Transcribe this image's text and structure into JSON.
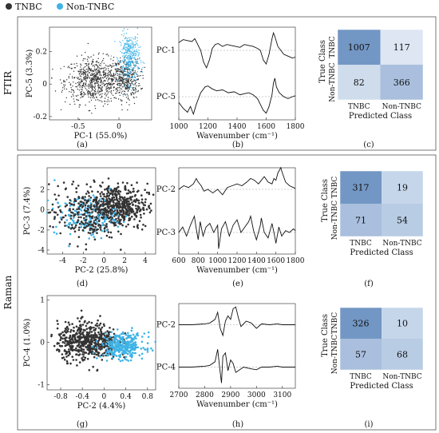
{
  "legend": {
    "items": [
      {
        "label": "TNBC",
        "color": "#333333"
      },
      {
        "label": "Non-TNBC",
        "color": "#3fb3e6"
      }
    ],
    "position": "top-left"
  },
  "sections": [
    {
      "label": "FTIR"
    },
    {
      "label": "Raman"
    }
  ],
  "panel_letters": [
    "(a)",
    "(b)",
    "(c)",
    "(d)",
    "(e)",
    "(f)",
    "(g)",
    "(h)",
    "(i)"
  ],
  "chart_data": [
    {
      "id": "a",
      "type": "scatter",
      "xlabel": "PC-1 (55.0%)",
      "ylabel": "PC-5 (3.3%)",
      "xlim": [
        -0.85,
        0.4
      ],
      "ylim": [
        -0.22,
        0.35
      ],
      "xticks": [
        -0.5,
        0
      ],
      "xticklabels": [
        "-0.5",
        "0"
      ],
      "yticks": [
        -0.2,
        0,
        0.2
      ],
      "yticklabels": [
        "-0.2",
        "0",
        "0.2"
      ],
      "series": [
        {
          "name": "TNBC",
          "color": "#333333",
          "clusters": [
            {
              "cx": -0.3,
              "cy": 0.02,
              "sx": 0.18,
              "sy": 0.07,
              "n": 700
            },
            {
              "cx": 0.08,
              "cy": 0.03,
              "sx": 0.09,
              "sy": 0.06,
              "n": 350
            }
          ]
        },
        {
          "name": "Non-TNBC",
          "color": "#3fb3e6",
          "clusters": [
            {
              "cx": 0.13,
              "cy": 0.16,
              "sx": 0.06,
              "sy": 0.08,
              "n": 380
            }
          ]
        }
      ]
    },
    {
      "id": "b",
      "type": "line",
      "xlabel": "Wavenumber (cm⁻¹)",
      "xlim": [
        1000,
        1800
      ],
      "xticks": [
        1000,
        1200,
        1400,
        1600,
        1800
      ],
      "xticklabels": [
        "1000",
        "1200",
        "1400",
        "1600",
        "1800"
      ],
      "series": [
        {
          "name": "PC-1",
          "x": [
            1000,
            1030,
            1060,
            1090,
            1110,
            1130,
            1150,
            1170,
            1190,
            1210,
            1230,
            1250,
            1270,
            1300,
            1330,
            1360,
            1390,
            1420,
            1450,
            1480,
            1510,
            1540,
            1560,
            1580,
            1600,
            1620,
            1640,
            1650,
            1660,
            1680,
            1700,
            1720,
            1750,
            1780,
            1800
          ],
          "y": [
            0.4,
            0.55,
            0.5,
            0.45,
            0.6,
            0.3,
            0.0,
            -0.6,
            -0.9,
            -0.5,
            0.1,
            0.3,
            0.35,
            0.2,
            0.3,
            0.25,
            0.2,
            0.15,
            0.3,
            0.25,
            0.2,
            0.1,
            0.0,
            -0.5,
            -0.7,
            -0.2,
            0.6,
            0.9,
            0.7,
            0.2,
            0.0,
            -0.2,
            -0.3,
            -0.4,
            -0.35
          ]
        },
        {
          "name": "PC-5",
          "x": [
            1000,
            1030,
            1060,
            1080,
            1100,
            1120,
            1150,
            1180,
            1200,
            1230,
            1260,
            1300,
            1340,
            1380,
            1420,
            1450,
            1480,
            1510,
            1540,
            1560,
            1580,
            1600,
            1620,
            1640,
            1650,
            1660,
            1670,
            1690,
            1720,
            1750,
            1780,
            1800
          ],
          "y": [
            -0.3,
            -0.6,
            -0.8,
            -0.5,
            -0.9,
            -0.4,
            0.2,
            0.5,
            0.55,
            0.4,
            0.3,
            0.35,
            0.2,
            0.25,
            0.1,
            0.15,
            0.2,
            0.1,
            -0.1,
            -0.4,
            -0.7,
            -0.85,
            -0.5,
            0.1,
            0.7,
            0.95,
            0.5,
            0.2,
            0.0,
            -0.1,
            0.0,
            0.05
          ]
        }
      ]
    },
    {
      "id": "c",
      "type": "heatmap",
      "title": "",
      "xlabel": "Predicted Class",
      "ylabel": "True Class",
      "x_categories": [
        "TNBC",
        "Non-TNBC"
      ],
      "y_categories": [
        "TNBC",
        "Non-TNBC"
      ],
      "values": [
        [
          1007,
          117
        ],
        [
          82,
          366
        ]
      ],
      "colors": [
        [
          "#7397c4",
          "#dde6f2"
        ],
        [
          "#cfdcec",
          "#a9bfdd"
        ]
      ]
    },
    {
      "id": "d",
      "type": "scatter",
      "xlabel": "PC-2 (25.8%)",
      "ylabel": "PC-3 (7.4%)",
      "xlim": [
        -5.5,
        5
      ],
      "ylim": [
        -4.4,
        4.2
      ],
      "xticks": [
        -4,
        -2,
        0,
        2,
        4
      ],
      "xticklabels": [
        "-4",
        "-2",
        "0",
        "2",
        "4"
      ],
      "yticks": [
        -4,
        -2,
        0,
        2
      ],
      "yticklabels": [
        "-4",
        "-2",
        "0",
        "2"
      ],
      "series": [
        {
          "name": "TNBC",
          "color": "#333333",
          "clusters": [
            {
              "cx": 1.2,
              "cy": 0.4,
              "sx": 1.5,
              "sy": 1.1,
              "n": 520
            }
          ]
        },
        {
          "name": "Non-TNBC",
          "color": "#3fb3e6",
          "clusters": [
            {
              "cx": -1.8,
              "cy": -0.6,
              "sx": 1.5,
              "sy": 1.0,
              "n": 170
            }
          ]
        },
        {
          "name": "TNBC",
          "color": "#333333",
          "clusters": [
            {
              "cx": -2.0,
              "cy": -0.4,
              "sx": 1.6,
              "sy": 1.4,
              "n": 220
            }
          ]
        }
      ]
    },
    {
      "id": "e",
      "type": "line",
      "xlabel": "Wavenumber (cm⁻¹)",
      "xlim": [
        600,
        1800
      ],
      "xticks": [
        600,
        800,
        1000,
        1200,
        1400,
        1600,
        1800
      ],
      "xticklabels": [
        "600",
        "800",
        "1000",
        "1200",
        "1400",
        "1600",
        "1800"
      ],
      "series": [
        {
          "name": "PC-2",
          "x": [
            600,
            650,
            700,
            750,
            780,
            800,
            830,
            860,
            900,
            950,
            1000,
            1050,
            1100,
            1150,
            1200,
            1250,
            1300,
            1340,
            1380,
            1420,
            1450,
            1480,
            1520,
            1560,
            1580,
            1600,
            1620,
            1650,
            1660,
            1680,
            1700,
            1740,
            1780,
            1800
          ],
          "y": [
            0.0,
            0.2,
            0.1,
            0.3,
            0.6,
            0.4,
            0.2,
            -0.1,
            0.0,
            -0.2,
            0.0,
            -0.3,
            0.1,
            0.2,
            0.3,
            0.2,
            0.4,
            0.6,
            0.5,
            0.3,
            0.5,
            0.7,
            0.4,
            0.3,
            0.6,
            0.5,
            0.9,
            1.2,
            1.0,
            0.7,
            0.4,
            0.2,
            0.1,
            0.05
          ]
        },
        {
          "name": "PC-3",
          "x": [
            600,
            640,
            680,
            720,
            760,
            780,
            800,
            820,
            850,
            880,
            920,
            960,
            1000,
            1010,
            1040,
            1080,
            1120,
            1160,
            1200,
            1240,
            1280,
            1320,
            1340,
            1370,
            1400,
            1440,
            1450,
            1480,
            1520,
            1560,
            1580,
            1600,
            1630,
            1660,
            1700,
            1740,
            1780,
            1800
          ],
          "y": [
            0.0,
            0.3,
            -0.2,
            0.4,
            0.9,
            0.2,
            -0.4,
            0.6,
            -0.2,
            0.3,
            0.5,
            0.0,
            0.4,
            -0.9,
            0.2,
            0.6,
            -0.2,
            0.4,
            0.7,
            0.0,
            0.3,
            0.6,
            0.9,
            0.1,
            -0.4,
            0.4,
            0.8,
            0.0,
            -0.3,
            0.5,
            0.0,
            -0.6,
            0.3,
            -0.2,
            0.1,
            0.0,
            0.2,
            0.1
          ]
        }
      ]
    },
    {
      "id": "f",
      "type": "heatmap",
      "title": "",
      "xlabel": "Predicted Class",
      "ylabel": "True Class",
      "x_categories": [
        "TNBC",
        "Non-TNBC"
      ],
      "y_categories": [
        "TNBC",
        "Non-TNBC"
      ],
      "values": [
        [
          317,
          19
        ],
        [
          71,
          54
        ]
      ],
      "colors": [
        [
          "#7397c4",
          "#c6d6ea"
        ],
        [
          "#a9bfdd",
          "#b8cce4"
        ]
      ]
    },
    {
      "id": "g",
      "type": "scatter",
      "xlabel": "PC-2 (4.4%)",
      "ylabel": "PC-4 (1.0%)",
      "xlim": [
        -1.05,
        0.95
      ],
      "ylim": [
        -1.12,
        1.1
      ],
      "xticks": [
        -0.8,
        -0.4,
        0,
        0.4,
        0.8
      ],
      "xticklabels": [
        "-0.8",
        "-0.4",
        "0",
        "0.4",
        "0.8"
      ],
      "yticks": [
        -1,
        0,
        1
      ],
      "yticklabels": [
        "-1",
        "0",
        "1"
      ],
      "series": [
        {
          "name": "TNBC",
          "color": "#333333",
          "clusters": [
            {
              "cx": -0.3,
              "cy": 0.02,
              "sx": 0.28,
              "sy": 0.22,
              "n": 560
            }
          ]
        },
        {
          "name": "Non-TNBC",
          "color": "#3fb3e6",
          "clusters": [
            {
              "cx": 0.35,
              "cy": -0.08,
              "sx": 0.2,
              "sy": 0.15,
              "n": 300
            }
          ]
        }
      ]
    },
    {
      "id": "h",
      "type": "line",
      "xlabel": "Wavenumber (cm⁻¹)",
      "xlim": [
        2700,
        3150
      ],
      "xticks": [
        2700,
        2800,
        2900,
        3000,
        3100
      ],
      "xticklabels": [
        "2700",
        "2800",
        "2900",
        "3000",
        "3100"
      ],
      "series": [
        {
          "name": "PC-2",
          "x": [
            2700,
            2750,
            2800,
            2820,
            2840,
            2850,
            2860,
            2870,
            2880,
            2890,
            2900,
            2910,
            2920,
            2930,
            2940,
            2960,
            2980,
            3000,
            3020,
            3050,
            3080,
            3100,
            3150
          ],
          "y": [
            0.0,
            0.0,
            0.05,
            0.1,
            0.3,
            0.7,
            -0.2,
            -0.6,
            0.2,
            0.5,
            0.3,
            0.9,
            1.0,
            0.4,
            -0.1,
            0.2,
            0.1,
            -0.2,
            0.05,
            0.0,
            0.05,
            0.0,
            0.0
          ]
        },
        {
          "name": "PC-4",
          "x": [
            2700,
            2750,
            2800,
            2820,
            2840,
            2850,
            2860,
            2865,
            2870,
            2880,
            2890,
            2900,
            2910,
            2920,
            2930,
            2950,
            2980,
            3000,
            3020,
            3050,
            3080,
            3100,
            3150
          ],
          "y": [
            0.0,
            0.0,
            0.05,
            0.1,
            0.3,
            1.0,
            -0.3,
            -0.9,
            0.6,
            0.8,
            -0.2,
            0.4,
            0.2,
            -0.3,
            -0.2,
            0.0,
            -0.1,
            -0.15,
            0.0,
            0.0,
            0.05,
            0.0,
            0.0
          ]
        }
      ]
    },
    {
      "id": "i",
      "type": "heatmap",
      "title": "",
      "xlabel": "Predicted Class",
      "ylabel": "True Class",
      "x_categories": [
        "TNBC",
        "Non-TNBC"
      ],
      "y_categories": [
        "TNBC",
        "Non-TNBC"
      ],
      "values": [
        [
          326,
          10
        ],
        [
          57,
          68
        ]
      ],
      "colors": [
        [
          "#7397c4",
          "#c6d6ea"
        ],
        [
          "#a9bfdd",
          "#b8cce4"
        ]
      ]
    }
  ]
}
